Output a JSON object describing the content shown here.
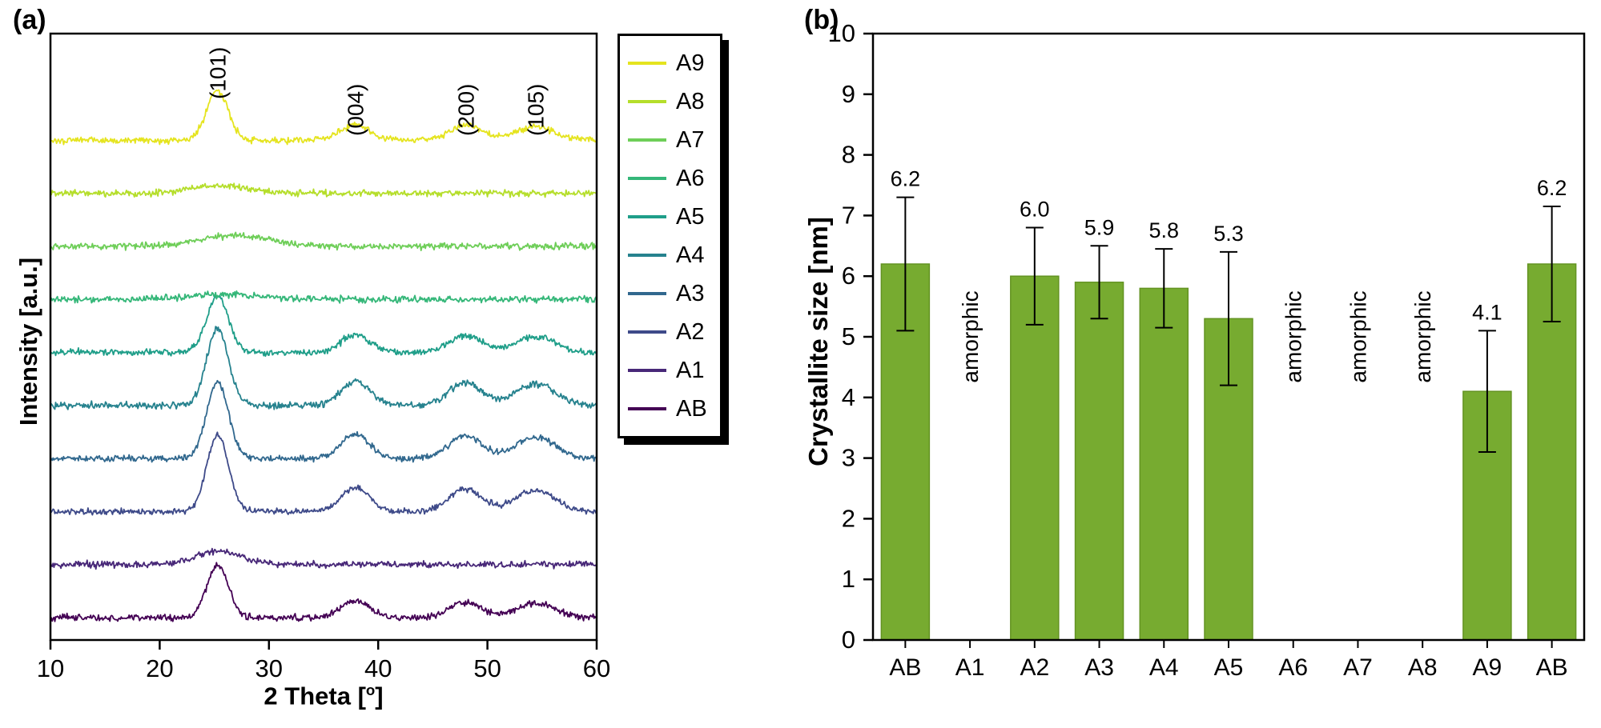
{
  "figure_background": "#ffffff",
  "chart_data": [
    {
      "type": "line",
      "panel_label": "(a)",
      "title": "",
      "xlabel": "2 Theta [°]",
      "xlabel_main": "2 Theta [",
      "xlabel_sup": "o",
      "xlabel_close": "]",
      "ylabel": "Intensity [a.u.]",
      "xlim": [
        10,
        60
      ],
      "x_ticks": [
        10,
        20,
        30,
        40,
        50,
        60
      ],
      "grid": false,
      "legend_position": "outside-right",
      "peaks": [
        {
          "label": "(101)",
          "two_theta": 25.3,
          "rel_height": 1.0,
          "sigma": 1.0
        },
        {
          "label": "(004)",
          "two_theta": 37.9,
          "rel_height": 0.32,
          "sigma": 1.3
        },
        {
          "label": "(200)",
          "two_theta": 48.0,
          "rel_height": 0.3,
          "sigma": 1.5
        },
        {
          "label": "(105)",
          "two_theta": 54.4,
          "rel_height": 0.28,
          "sigma": 1.8
        }
      ],
      "series": [
        {
          "name": "AB",
          "color": "#440154",
          "crystalline": true,
          "peak_scale": 0.68
        },
        {
          "name": "A1",
          "color": "#482878",
          "crystalline": false,
          "bump": {
            "x": 25.5,
            "h": 17,
            "w": 2.0
          }
        },
        {
          "name": "A2",
          "color": "#3e4a89",
          "crystalline": true,
          "peak_scale": 1.0
        },
        {
          "name": "A3",
          "color": "#31688e",
          "crystalline": true,
          "peak_scale": 1.0
        },
        {
          "name": "A4",
          "color": "#26828e",
          "crystalline": true,
          "peak_scale": 1.0
        },
        {
          "name": "A5",
          "color": "#1f9e89",
          "crystalline": true,
          "peak_scale": 0.74
        },
        {
          "name": "A6",
          "color": "#35b779",
          "crystalline": false,
          "bump": {
            "x": 26.0,
            "h": 6,
            "w": 3.5
          }
        },
        {
          "name": "A7",
          "color": "#6ece58",
          "crystalline": false,
          "bump": {
            "x": 27.0,
            "h": 14,
            "w": 3.2
          }
        },
        {
          "name": "A8",
          "color": "#b5de2b",
          "crystalline": false,
          "bump": {
            "x": 25.5,
            "h": 10,
            "w": 2.6
          }
        },
        {
          "name": "A9",
          "color": "#e5e41f",
          "crystalline": true,
          "peak_scale": 0.65
        }
      ],
      "legend": [
        "A9",
        "A8",
        "A7",
        "A6",
        "A5",
        "A4",
        "A3",
        "A2",
        "A1",
        "AB"
      ]
    },
    {
      "type": "bar",
      "panel_label": "(b)",
      "title": "",
      "xlabel": "",
      "ylabel": "Crystallite size [nm]",
      "ylim": [
        0,
        10
      ],
      "y_ticks": [
        0,
        1,
        2,
        3,
        4,
        5,
        6,
        7,
        8,
        9,
        10
      ],
      "grid": false,
      "bar_color": "#77ab30",
      "bar_edge_color": "#639322",
      "categories": [
        "AB",
        "A1",
        "A2",
        "A3",
        "A4",
        "A5",
        "A6",
        "A7",
        "A8",
        "A9",
        "AB"
      ],
      "values": [
        6.2,
        null,
        6.0,
        5.9,
        5.8,
        5.3,
        null,
        null,
        null,
        4.1,
        6.2
      ],
      "errors": [
        1.1,
        null,
        0.8,
        0.6,
        0.65,
        1.1,
        null,
        null,
        null,
        1.0,
        0.95
      ],
      "value_labels": [
        "6.2",
        null,
        "6.0",
        "5.9",
        "5.8",
        "5.3",
        null,
        null,
        null,
        "4.1",
        "6.2"
      ],
      "amorphic_text": "amorphic",
      "amorphic_indices": [
        1,
        6,
        7,
        8
      ]
    }
  ]
}
